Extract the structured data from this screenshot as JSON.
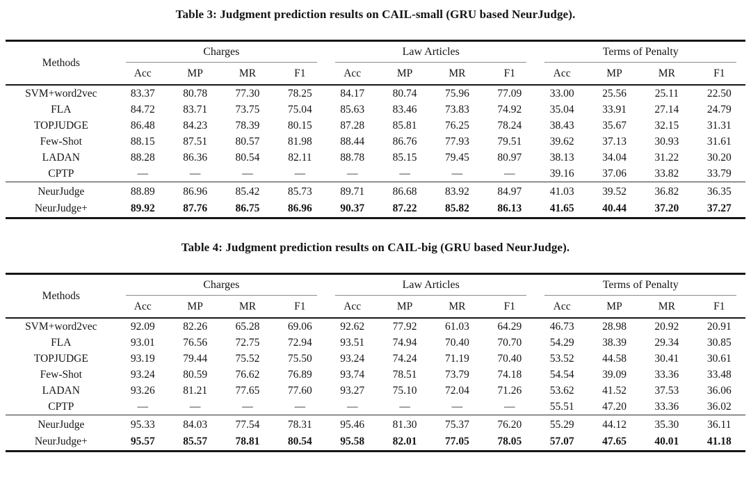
{
  "tables": [
    {
      "caption": "Table 3: Judgment prediction results on CAIL-small (GRU based NeurJudge).",
      "methods_header": "Methods",
      "groups": [
        {
          "label": "Charges",
          "columns": [
            "Acc",
            "MP",
            "MR",
            "F1"
          ]
        },
        {
          "label": "Law Articles",
          "columns": [
            "Acc",
            "MP",
            "MR",
            "F1"
          ]
        },
        {
          "label": "Terms of Penalty",
          "columns": [
            "Acc",
            "MP",
            "MR",
            "F1"
          ]
        }
      ],
      "sections": [
        {
          "rows": [
            {
              "method": "SVM+word2vec",
              "bold": false,
              "values": [
                "83.37",
                "80.78",
                "77.30",
                "78.25",
                "84.17",
                "80.74",
                "75.96",
                "77.09",
                "33.00",
                "25.56",
                "25.11",
                "22.50"
              ]
            },
            {
              "method": "FLA",
              "bold": false,
              "values": [
                "84.72",
                "83.71",
                "73.75",
                "75.04",
                "85.63",
                "83.46",
                "73.83",
                "74.92",
                "35.04",
                "33.91",
                "27.14",
                "24.79"
              ]
            },
            {
              "method": "TOPJUDGE",
              "bold": false,
              "values": [
                "86.48",
                "84.23",
                "78.39",
                "80.15",
                "87.28",
                "85.81",
                "76.25",
                "78.24",
                "38.43",
                "35.67",
                "32.15",
                "31.31"
              ]
            },
            {
              "method": "Few-Shot",
              "bold": false,
              "values": [
                "88.15",
                "87.51",
                "80.57",
                "81.98",
                "88.44",
                "86.76",
                "77.93",
                "79.51",
                "39.62",
                "37.13",
                "30.93",
                "31.61"
              ]
            },
            {
              "method": "LADAN",
              "bold": false,
              "values": [
                "88.28",
                "86.36",
                "80.54",
                "82.11",
                "88.78",
                "85.15",
                "79.45",
                "80.97",
                "38.13",
                "34.04",
                "31.22",
                "30.20"
              ]
            },
            {
              "method": "CPTP",
              "bold": false,
              "values": [
                "—",
                "—",
                "—",
                "—",
                "—",
                "—",
                "—",
                "—",
                "39.16",
                "37.06",
                "33.82",
                "33.79"
              ]
            }
          ]
        },
        {
          "rows": [
            {
              "method": "NeurJudge",
              "bold": false,
              "values": [
                "88.89",
                "86.96",
                "85.42",
                "85.73",
                "89.71",
                "86.68",
                "83.92",
                "84.97",
                "41.03",
                "39.52",
                "36.82",
                "36.35"
              ]
            },
            {
              "method": "NeurJudge+",
              "bold": true,
              "values": [
                "89.92",
                "87.76",
                "86.75",
                "86.96",
                "90.37",
                "87.22",
                "85.82",
                "86.13",
                "41.65",
                "40.44",
                "37.20",
                "37.27"
              ]
            }
          ]
        }
      ]
    },
    {
      "caption": "Table 4: Judgment prediction results on CAIL-big (GRU based NeurJudge).",
      "methods_header": "Methods",
      "groups": [
        {
          "label": "Charges",
          "columns": [
            "Acc",
            "MP",
            "MR",
            "F1"
          ]
        },
        {
          "label": "Law Articles",
          "columns": [
            "Acc",
            "MP",
            "MR",
            "F1"
          ]
        },
        {
          "label": "Terms of Penalty",
          "columns": [
            "Acc",
            "MP",
            "MR",
            "F1"
          ]
        }
      ],
      "sections": [
        {
          "rows": [
            {
              "method": "SVM+word2vec",
              "bold": false,
              "values": [
                "92.09",
                "82.26",
                "65.28",
                "69.06",
                "92.62",
                "77.92",
                "61.03",
                "64.29",
                "46.73",
                "28.98",
                "20.92",
                "20.91"
              ]
            },
            {
              "method": "FLA",
              "bold": false,
              "values": [
                "93.01",
                "76.56",
                "72.75",
                "72.94",
                "93.51",
                "74.94",
                "70.40",
                "70.70",
                "54.29",
                "38.39",
                "29.34",
                "30.85"
              ]
            },
            {
              "method": "TOPJUDGE",
              "bold": false,
              "values": [
                "93.19",
                "79.44",
                "75.52",
                "75.50",
                "93.24",
                "74.24",
                "71.19",
                "70.40",
                "53.52",
                "44.58",
                "30.41",
                "30.61"
              ]
            },
            {
              "method": "Few-Shot",
              "bold": false,
              "values": [
                "93.24",
                "80.59",
                "76.62",
                "76.89",
                "93.74",
                "78.51",
                "73.79",
                "74.18",
                "54.54",
                "39.09",
                "33.36",
                "33.48"
              ]
            },
            {
              "method": "LADAN",
              "bold": false,
              "values": [
                "93.26",
                "81.21",
                "77.65",
                "77.60",
                "93.27",
                "75.10",
                "72.04",
                "71.26",
                "53.62",
                "41.52",
                "37.53",
                "36.06"
              ]
            },
            {
              "method": "CPTP",
              "bold": false,
              "values": [
                "—",
                "—",
                "—",
                "—",
                "—",
                "—",
                "—",
                "—",
                "55.51",
                "47.20",
                "33.36",
                "36.02"
              ]
            }
          ]
        },
        {
          "rows": [
            {
              "method": "NeurJudge",
              "bold": false,
              "values": [
                "95.33",
                "84.03",
                "77.54",
                "78.31",
                "95.46",
                "81.30",
                "75.37",
                "76.20",
                "55.29",
                "44.12",
                "35.30",
                "36.11"
              ]
            },
            {
              "method": "NeurJudge+",
              "bold": true,
              "values": [
                "95.57",
                "85.57",
                "78.81",
                "80.54",
                "95.58",
                "82.01",
                "77.05",
                "78.05",
                "57.07",
                "47.65",
                "40.01",
                "41.18"
              ]
            }
          ]
        }
      ]
    }
  ]
}
